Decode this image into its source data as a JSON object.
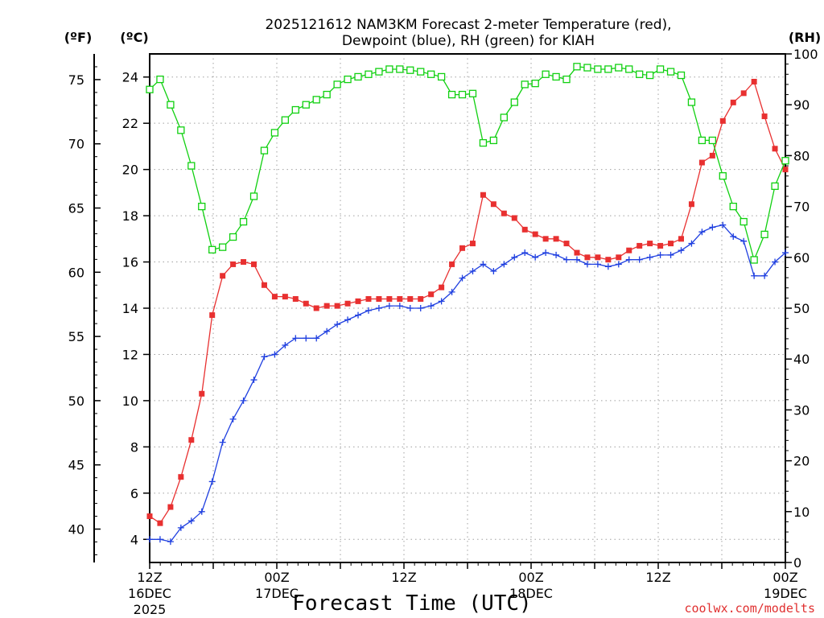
{
  "chart_data": {
    "type": "line",
    "title_line1": "2025121612 NAM3KM Forecast 2-meter Temperature (red),",
    "title_line2": "Dewpoint (blue), RH (green) for KIAH",
    "xlabel": "Forecast Time (UTC)",
    "credit": "coolwx.com/modelts",
    "units": {
      "f": "(ºF)",
      "c": "(ºC)",
      "rh": "(RH)"
    },
    "x_range_hours": [
      0,
      60
    ],
    "c_range": [
      3,
      25
    ],
    "f_range": [
      37.4,
      77
    ],
    "rh_range": [
      0,
      100
    ],
    "c_ticks": [
      "4",
      "6",
      "8",
      "10",
      "12",
      "14",
      "16",
      "18",
      "20",
      "22",
      "24"
    ],
    "f_ticks": [
      "40",
      "45",
      "50",
      "55",
      "60",
      "65",
      "70",
      "75"
    ],
    "rh_ticks": [
      "0",
      "10",
      "20",
      "30",
      "40",
      "50",
      "60",
      "70",
      "80",
      "90",
      "100"
    ],
    "x_ticks": [
      {
        "hour": 0,
        "line1": "12Z",
        "line2": "16DEC",
        "line3": "2025"
      },
      {
        "hour": 12,
        "line1": "00Z",
        "line2": "17DEC",
        "line3": ""
      },
      {
        "hour": 24,
        "line1": "12Z",
        "line2": "",
        "line3": ""
      },
      {
        "hour": 36,
        "line1": "00Z",
        "line2": "18DEC",
        "line3": ""
      },
      {
        "hour": 48,
        "line1": "12Z",
        "line2": "",
        "line3": ""
      },
      {
        "hour": 60,
        "line1": "00Z",
        "line2": "19DEC",
        "line3": ""
      }
    ],
    "colors": {
      "temperature": "#e83030",
      "dewpoint": "#2040e0",
      "rh": "#10d010",
      "grid": "#a0a0a0"
    },
    "series": [
      {
        "name": "Temperature (red)",
        "units": "C",
        "marker": "square",
        "values": [
          5.0,
          4.7,
          5.4,
          6.7,
          8.3,
          10.3,
          13.7,
          15.4,
          15.9,
          16.0,
          15.9,
          15.0,
          14.5,
          14.5,
          14.4,
          14.2,
          14.0,
          14.1,
          14.1,
          14.2,
          14.3,
          14.4,
          14.4,
          14.4,
          14.4,
          14.4,
          14.4,
          14.6,
          14.9,
          15.9,
          16.6,
          16.8,
          18.9,
          18.5,
          18.1,
          17.9,
          17.4,
          17.2,
          17.0,
          17.0,
          16.8,
          16.4,
          16.2,
          16.2,
          16.1,
          16.2,
          16.5,
          16.7,
          16.8,
          16.7,
          16.8,
          17.0,
          18.5,
          20.3,
          20.6,
          22.1,
          22.9,
          23.3,
          23.8,
          22.3,
          20.9,
          20.0
        ]
      },
      {
        "name": "Dewpoint (blue)",
        "units": "C",
        "marker": "plus",
        "values": [
          4.0,
          4.0,
          3.9,
          4.5,
          4.8,
          5.2,
          6.5,
          8.2,
          9.2,
          10.0,
          10.9,
          11.9,
          12.0,
          12.4,
          12.7,
          12.7,
          12.7,
          13.0,
          13.3,
          13.5,
          13.7,
          13.9,
          14.0,
          14.1,
          14.1,
          14.0,
          14.0,
          14.1,
          14.3,
          14.7,
          15.3,
          15.6,
          15.9,
          15.6,
          15.9,
          16.2,
          16.4,
          16.2,
          16.4,
          16.3,
          16.1,
          16.1,
          15.9,
          15.9,
          15.8,
          15.9,
          16.1,
          16.1,
          16.2,
          16.3,
          16.3,
          16.5,
          16.8,
          17.3,
          17.5,
          17.6,
          17.1,
          16.9,
          15.4,
          15.4,
          16.0,
          16.4
        ]
      },
      {
        "name": "RH (green)",
        "units": "%",
        "marker": "open-square",
        "values": [
          93,
          95,
          90,
          85,
          78,
          70,
          61.5,
          62,
          64,
          67,
          72,
          81,
          84.5,
          87,
          89,
          90,
          91,
          92,
          94,
          95,
          95.5,
          96,
          96.5,
          97,
          97,
          96.8,
          96.5,
          96,
          95.5,
          92,
          92,
          92.2,
          82.5,
          83,
          87.5,
          90.5,
          94,
          94.2,
          96,
          95.5,
          95,
          97.5,
          97.3,
          97,
          97,
          97.3,
          97,
          96,
          95.8,
          97,
          96.5,
          95.8,
          90.5,
          83,
          83,
          76,
          70,
          67,
          59.5,
          64.5,
          74,
          79
        ]
      }
    ]
  }
}
